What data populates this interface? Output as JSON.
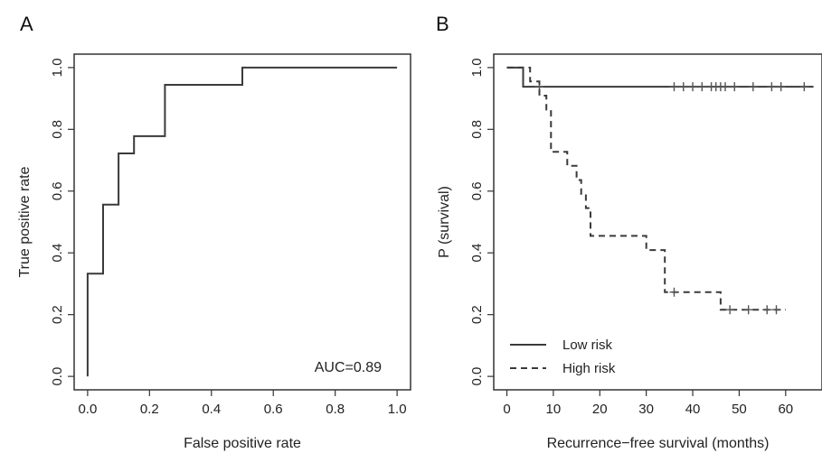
{
  "chart_data": [
    {
      "panel_label": "A",
      "type": "line",
      "xlabel": "False positive rate",
      "ylabel": "True positive rate",
      "xlim": [
        0,
        1
      ],
      "ylim": [
        0,
        1
      ],
      "xticks": [
        "0.0",
        "0.2",
        "0.4",
        "0.6",
        "0.8",
        "1.0"
      ],
      "yticks": [
        "0.0",
        "0.2",
        "0.4",
        "0.6",
        "0.8",
        "1.0"
      ],
      "grid": false,
      "annotation": "AUC=0.89",
      "series": [
        {
          "style": "solid",
          "x": [
            0.0,
            0.0,
            0.05,
            0.05,
            0.1,
            0.1,
            0.15,
            0.15,
            0.25,
            0.25,
            0.5,
            0.5,
            1.0
          ],
          "y": [
            0.0,
            0.333,
            0.333,
            0.556,
            0.556,
            0.722,
            0.722,
            0.778,
            0.778,
            0.944,
            0.944,
            1.0,
            1.0
          ]
        }
      ]
    },
    {
      "panel_label": "B",
      "type": "line",
      "xlabel": "Recurrence−free survival (months)",
      "ylabel": "P (survival)",
      "xlim": [
        0,
        65
      ],
      "ylim": [
        0,
        1
      ],
      "xticks": [
        "0",
        "10",
        "20",
        "30",
        "40",
        "50",
        "60"
      ],
      "yticks": [
        "0.0",
        "0.2",
        "0.4",
        "0.6",
        "0.8",
        "1.0"
      ],
      "grid": false,
      "legend_position": "bottom-left",
      "series": [
        {
          "name": "Low risk",
          "style": "solid",
          "steps": [
            [
              0,
              1.0
            ],
            [
              3.5,
              0.938
            ],
            [
              66,
              0.938
            ]
          ],
          "censored": [
            [
              7,
              0.938
            ],
            [
              36,
              0.938
            ],
            [
              38,
              0.938
            ],
            [
              40,
              0.938
            ],
            [
              42,
              0.938
            ],
            [
              44,
              0.938
            ],
            [
              45,
              0.938
            ],
            [
              46,
              0.938
            ],
            [
              47,
              0.938
            ],
            [
              49,
              0.938
            ],
            [
              53,
              0.938
            ],
            [
              57,
              0.938
            ],
            [
              59,
              0.938
            ],
            [
              64,
              0.938
            ]
          ]
        },
        {
          "name": "High risk",
          "style": "dashed",
          "steps": [
            [
              0,
              1.0
            ],
            [
              5,
              0.955
            ],
            [
              7,
              0.909
            ],
            [
              8.5,
              0.864
            ],
            [
              9.5,
              0.727
            ],
            [
              13,
              0.682
            ],
            [
              15,
              0.636
            ],
            [
              16,
              0.591
            ],
            [
              17,
              0.545
            ],
            [
              18,
              0.455
            ],
            [
              30,
              0.409
            ],
            [
              34,
              0.273
            ],
            [
              46,
              0.216
            ],
            [
              60,
              0.216
            ]
          ],
          "censored": [
            [
              36,
              0.273
            ],
            [
              48,
              0.216
            ],
            [
              52,
              0.216
            ],
            [
              56,
              0.216
            ],
            [
              58,
              0.216
            ]
          ]
        }
      ]
    }
  ]
}
